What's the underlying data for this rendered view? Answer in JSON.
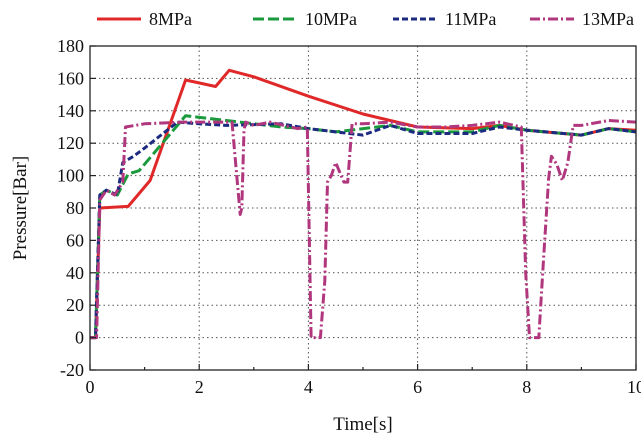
{
  "chart_data": {
    "type": "line",
    "title": "",
    "xlabel": "Time[s]",
    "ylabel": "Pressure[Bar]",
    "xlim": [
      0,
      10
    ],
    "ylim": [
      -20,
      180
    ],
    "xticks": [
      0,
      2,
      4,
      6,
      8,
      10
    ],
    "yticks": [
      -20,
      0,
      20,
      40,
      60,
      80,
      100,
      120,
      140,
      160,
      180
    ],
    "grid": true,
    "legend_position": "top",
    "series": [
      {
        "name": "8MPa",
        "color": "#e02828",
        "dash": "solid",
        "x": [
          0,
          0.1,
          0.18,
          0.7,
          1.1,
          1.75,
          2.3,
          2.55,
          3.0,
          4.0,
          5.0,
          6.0,
          7.0,
          7.5,
          8.0,
          9.0,
          9.5,
          10.0
        ],
        "y": [
          0,
          0,
          80,
          81,
          97,
          159,
          155,
          165,
          161,
          149,
          138,
          130,
          129,
          131,
          128,
          125,
          129,
          128
        ]
      },
      {
        "name": "10MPa",
        "color": "#1a9a3c",
        "dash": "dashed",
        "x": [
          0,
          0.1,
          0.18,
          0.3,
          0.5,
          0.7,
          0.9,
          1.75,
          2.5,
          3.5,
          4.0,
          4.5,
          5.5,
          6.0,
          7.0,
          7.5,
          8.0,
          9.0,
          9.5,
          10.0
        ],
        "y": [
          0,
          0,
          88,
          91,
          88,
          101,
          103,
          137,
          134,
          130,
          129,
          127,
          131,
          127,
          127,
          131,
          128,
          125,
          129,
          127
        ]
      },
      {
        "name": "11MPa",
        "color": "#1c2a80",
        "dash": "short-dash",
        "x": [
          0,
          0.1,
          0.18,
          0.3,
          0.5,
          0.6,
          0.8,
          1.0,
          1.6,
          2.0,
          2.5,
          3.5,
          4.0,
          4.5,
          5.0,
          5.5,
          6.0,
          7.0,
          7.5,
          8.0,
          9.0,
          9.5,
          10.0
        ],
        "y": [
          0,
          0,
          88,
          91,
          88,
          108,
          112,
          117,
          133,
          132,
          131,
          132,
          129,
          127,
          125,
          131,
          126,
          126,
          130,
          128,
          125,
          129,
          127
        ]
      },
      {
        "name": "13MPa",
        "color": "#b0377e",
        "dash": "dash-dot",
        "x": [
          0,
          0.12,
          0.18,
          0.3,
          0.45,
          0.6,
          0.65,
          1.0,
          1.7,
          2.6,
          2.75,
          2.78,
          2.82,
          2.85,
          3.0,
          3.3,
          3.8,
          3.98,
          4.05,
          4.12,
          4.18,
          4.22,
          4.3,
          4.35,
          4.42,
          4.5,
          4.65,
          4.72,
          4.8,
          5.0,
          5.5,
          6.0,
          6.5,
          7.0,
          7.5,
          7.9,
          7.98,
          8.05,
          8.15,
          8.22,
          8.3,
          8.4,
          8.45,
          8.55,
          8.65,
          8.75,
          8.85,
          9.0,
          9.5,
          10.0
        ],
        "y": [
          0,
          0,
          85,
          91,
          88,
          96,
          130,
          132,
          133,
          133,
          76,
          80,
          128,
          133,
          131,
          133,
          129,
          130,
          0,
          0,
          0,
          0,
          35,
          96,
          100,
          108,
          96,
          96,
          132,
          132,
          133,
          130,
          130,
          131,
          133,
          130,
          40,
          0,
          0,
          0,
          45,
          98,
          112,
          107,
          97,
          108,
          131,
          131,
          134,
          133
        ]
      }
    ]
  }
}
